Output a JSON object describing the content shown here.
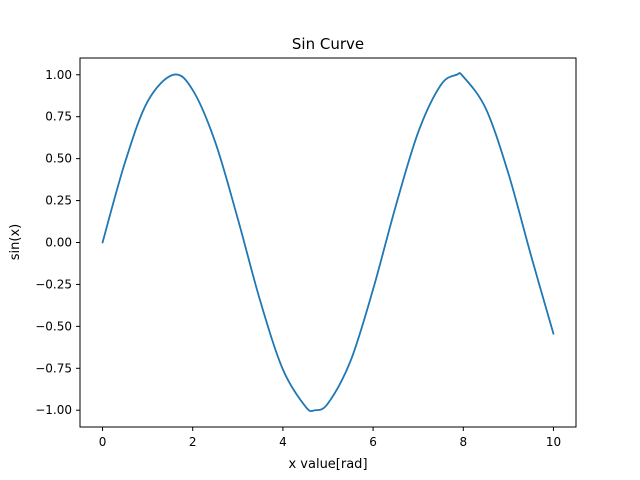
{
  "chart_data": {
    "type": "line",
    "title": "Sin Curve",
    "xlabel": "x value[rad]",
    "ylabel": "sin(x)",
    "xlim": [
      -0.5,
      10.5
    ],
    "ylim": [
      -1.1,
      1.1
    ],
    "x_ticks": [
      0,
      2,
      4,
      6,
      8,
      10
    ],
    "x_tick_labels": [
      "0",
      "2",
      "4",
      "6",
      "8",
      "10"
    ],
    "y_ticks": [
      -1.0,
      -0.75,
      -0.5,
      -0.25,
      0.0,
      0.25,
      0.5,
      0.75,
      1.0
    ],
    "y_tick_labels": [
      "−1.00",
      "−0.75",
      "−0.50",
      "−0.25",
      "0.00",
      "0.25",
      "0.50",
      "0.75",
      "1.00"
    ],
    "grid": false,
    "legend": "none",
    "series": [
      {
        "color": "#1f77b4",
        "x": [
          0.0,
          0.5,
          1.0,
          1.5708,
          2.0,
          2.5,
          3.0,
          3.5,
          4.0,
          4.5,
          4.7124,
          5.0,
          5.5,
          6.0,
          6.5,
          7.0,
          7.5,
          7.854,
          8.0,
          8.5,
          9.0,
          9.5,
          10.0
        ],
        "y": [
          0.0,
          0.479,
          0.841,
          1.0,
          0.909,
          0.598,
          0.141,
          -0.351,
          -0.757,
          -0.978,
          -1.0,
          -0.959,
          -0.706,
          -0.279,
          0.215,
          0.657,
          0.938,
          1.0,
          0.989,
          0.798,
          0.412,
          -0.075,
          -0.544
        ]
      }
    ]
  }
}
